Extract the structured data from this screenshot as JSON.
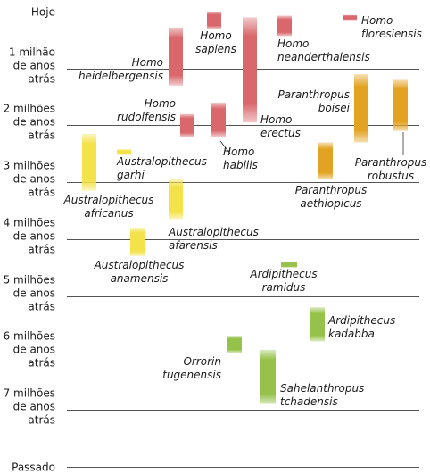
{
  "chart_data": {
    "type": "range-bar",
    "title": "",
    "xlabel": "",
    "ylabel": "",
    "y_unit": "milhões de anos atrás",
    "ylim": [
      0,
      8
    ],
    "grid": "horizontal",
    "y_tick_labels": [
      {
        "value": 0,
        "lines": [
          "Hoje"
        ]
      },
      {
        "value": 1,
        "lines": [
          "1 milhão",
          "de anos",
          "atrás"
        ]
      },
      {
        "value": 2,
        "lines": [
          "2 milhões",
          "de anos",
          "atrás"
        ]
      },
      {
        "value": 3,
        "lines": [
          "3 milhões",
          "de anos",
          "atrás"
        ]
      },
      {
        "value": 4,
        "lines": [
          "4 milhões",
          "de anos",
          "atrás"
        ]
      },
      {
        "value": 5,
        "lines": [
          "5 milhões",
          "de anos",
          "atrás"
        ]
      },
      {
        "value": 6,
        "lines": [
          "6 milhões",
          "de anos",
          "atrás"
        ]
      },
      {
        "value": 7,
        "lines": [
          "7 milhões",
          "de anos",
          "atrás"
        ]
      },
      {
        "value": 8,
        "lines": [
          "Passado"
        ]
      }
    ],
    "groups": [
      {
        "key": "homo",
        "color": "#d9676b"
      },
      {
        "key": "paranthropus",
        "color": "#e3a322"
      },
      {
        "key": "australopithecus",
        "color": "#f4e24a"
      },
      {
        "key": "ardipithecus",
        "color": "#96c24b"
      }
    ],
    "species": [
      {
        "id": "h-sapiens",
        "group": "homo",
        "lines": [
          "Homo",
          "sapiens"
        ],
        "start": 0.0,
        "end": 0.3
      },
      {
        "id": "h-neanderthalensis",
        "group": "homo",
        "lines": [
          "Homo",
          "neanderthalensis"
        ],
        "start": 0.07,
        "end": 0.43
      },
      {
        "id": "h-floresiensis",
        "group": "homo",
        "lines": [
          "Homo",
          "floresiensis"
        ],
        "start": 0.06,
        "end": 0.15
      },
      {
        "id": "h-heidelbergensis",
        "group": "homo",
        "lines": [
          "Homo",
          "heidelbergensis"
        ],
        "start": 0.28,
        "end": 1.3
      },
      {
        "id": "h-erectus",
        "group": "homo",
        "lines": [
          "Homo",
          "erectus"
        ],
        "start": 0.1,
        "end": 1.95
      },
      {
        "id": "h-rudolfensis",
        "group": "homo",
        "lines": [
          "Homo",
          "rudolfensis"
        ],
        "start": 1.8,
        "end": 2.2
      },
      {
        "id": "h-habilis",
        "group": "homo",
        "lines": [
          "Homo",
          "habilis"
        ],
        "start": 1.6,
        "end": 2.2
      },
      {
        "id": "p-boisei",
        "group": "paranthropus",
        "lines": [
          "Paranthropus",
          "boisei"
        ],
        "start": 1.1,
        "end": 2.3
      },
      {
        "id": "p-robustus",
        "group": "paranthropus",
        "lines": [
          "Paranthropus",
          "robustus"
        ],
        "start": 1.2,
        "end": 2.1
      },
      {
        "id": "p-aethiopicus",
        "group": "paranthropus",
        "lines": [
          "Paranthropus",
          "aethiopicus"
        ],
        "start": 2.3,
        "end": 2.95
      },
      {
        "id": "a-africanus",
        "group": "australopithecus",
        "lines": [
          "Australopithecus",
          "africanus"
        ],
        "start": 2.15,
        "end": 3.15
      },
      {
        "id": "a-garhi",
        "group": "australopithecus",
        "lines": [
          "Australopithecus",
          "garhi"
        ],
        "start": 2.42,
        "end": 2.52
      },
      {
        "id": "a-afarensis",
        "group": "australopithecus",
        "lines": [
          "Australopithecus",
          "afarensis"
        ],
        "start": 2.95,
        "end": 3.65
      },
      {
        "id": "a-anamensis",
        "group": "australopithecus",
        "lines": [
          "Australopithecus",
          "anamensis"
        ],
        "start": 3.8,
        "end": 4.3
      },
      {
        "id": "ar-ramidus",
        "group": "ardipithecus",
        "lines": [
          "Ardipithecus",
          "ramidus"
        ],
        "start": 4.4,
        "end": 4.5
      },
      {
        "id": "ar-kadabba",
        "group": "ardipithecus",
        "lines": [
          "Ardipithecus",
          "kadabba"
        ],
        "start": 5.2,
        "end": 5.8
      },
      {
        "id": "o-tugenensis",
        "group": "ardipithecus",
        "lines": [
          "Orrorin",
          "tugenensis"
        ],
        "start": 5.7,
        "end": 6.0
      },
      {
        "id": "s-tchadensis",
        "group": "ardipithecus",
        "lines": [
          "Sahelanthropus",
          "tchadensis"
        ],
        "start": 5.95,
        "end": 6.9
      }
    ]
  }
}
